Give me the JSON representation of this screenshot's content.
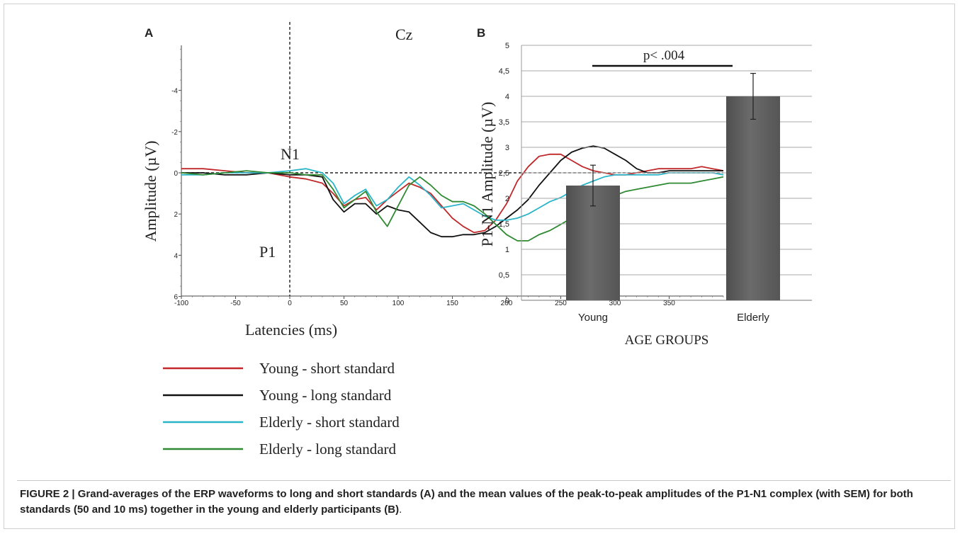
{
  "chart_data": [
    {
      "panel": "A",
      "type": "line",
      "channel": "Cz",
      "xlabel": "Latencies (ms)",
      "ylabel": "Amplitude (µV)",
      "xlim": [
        -100,
        400
      ],
      "ylim": [
        -6,
        6
      ],
      "y_inverted": true,
      "x_ticks": [
        "-100",
        "-50",
        "0",
        "50",
        "100",
        "150",
        "200",
        "250",
        "300",
        "350"
      ],
      "y_ticks": [
        "-4",
        "-2",
        "0",
        "2",
        "4",
        "6"
      ],
      "annotations": [
        "N1",
        "P1"
      ],
      "series": [
        {
          "name": "Young - short standard",
          "color": "#c0282a",
          "x": [
            -100,
            -80,
            -60,
            -40,
            -20,
            0,
            15,
            30,
            40,
            50,
            60,
            70,
            80,
            90,
            100,
            110,
            120,
            130,
            140,
            150,
            160,
            170,
            180,
            190,
            200,
            210,
            220,
            230,
            240,
            250,
            260,
            270,
            280,
            290,
            300,
            310,
            320,
            330,
            340,
            350,
            360,
            370,
            380,
            390,
            400
          ],
          "y": [
            -0.2,
            -0.2,
            -0.1,
            0,
            0,
            0.2,
            0.3,
            0.5,
            1.0,
            1.6,
            1.3,
            1.2,
            1.8,
            1.3,
            0.9,
            0.5,
            0.7,
            1.0,
            1.6,
            2.2,
            2.6,
            2.9,
            2.8,
            2.3,
            1.5,
            0.4,
            -0.3,
            -0.8,
            -0.9,
            -0.9,
            -0.6,
            -0.3,
            -0.1,
            0,
            0.1,
            0.1,
            0,
            -0.1,
            -0.2,
            -0.2,
            -0.2,
            -0.2,
            -0.3,
            -0.2,
            -0.1
          ]
        },
        {
          "name": "Young - long standard",
          "color": "#111111",
          "x": [
            -100,
            -80,
            -60,
            -40,
            -20,
            0,
            15,
            30,
            40,
            50,
            60,
            70,
            80,
            90,
            100,
            110,
            120,
            130,
            140,
            150,
            160,
            170,
            180,
            190,
            200,
            210,
            220,
            230,
            240,
            250,
            260,
            270,
            280,
            290,
            300,
            310,
            320,
            330,
            340,
            350,
            360,
            370,
            380,
            390,
            400
          ],
          "y": [
            0,
            0,
            0.1,
            0.1,
            0,
            0.1,
            0.1,
            0.2,
            1.3,
            1.9,
            1.5,
            1.5,
            2.0,
            1.6,
            1.8,
            1.9,
            2.4,
            2.9,
            3.1,
            3.1,
            3.0,
            3.0,
            2.9,
            2.6,
            2.2,
            1.8,
            1.3,
            0.6,
            0,
            -0.6,
            -1.0,
            -1.2,
            -1.3,
            -1.2,
            -0.9,
            -0.6,
            -0.2,
            0,
            0,
            -0.1,
            -0.1,
            -0.1,
            -0.1,
            -0.1,
            -0.1
          ]
        },
        {
          "name": "Elderly - short standard",
          "color": "#2ab5c8",
          "x": [
            -100,
            -80,
            -60,
            -40,
            -20,
            0,
            15,
            30,
            40,
            50,
            60,
            70,
            80,
            90,
            100,
            110,
            120,
            130,
            140,
            150,
            160,
            170,
            180,
            190,
            200,
            210,
            220,
            230,
            240,
            250,
            260,
            270,
            280,
            290,
            300,
            310,
            320,
            330,
            340,
            350,
            360,
            370,
            380,
            390,
            400
          ],
          "y": [
            0.1,
            0.1,
            0,
            0,
            0,
            -0.1,
            -0.2,
            0,
            0.5,
            1.5,
            1.1,
            0.8,
            1.6,
            1.3,
            0.7,
            0.2,
            0.6,
            1.1,
            1.7,
            1.6,
            1.5,
            1.8,
            2.1,
            2.3,
            2.3,
            2.2,
            2.0,
            1.7,
            1.4,
            1.2,
            0.9,
            0.6,
            0.4,
            0.2,
            0.1,
            0.1,
            0.1,
            0.1,
            0.1,
            0,
            0,
            0,
            0,
            0,
            0.1
          ]
        },
        {
          "name": "Elderly - long standard",
          "color": "#2f8a33",
          "x": [
            -100,
            -80,
            -60,
            -40,
            -20,
            0,
            15,
            30,
            40,
            50,
            60,
            70,
            80,
            90,
            100,
            110,
            120,
            130,
            140,
            150,
            160,
            170,
            180,
            190,
            200,
            210,
            220,
            230,
            240,
            250,
            260,
            270,
            280,
            290,
            300,
            310,
            320,
            330,
            340,
            350,
            360,
            370,
            380,
            390,
            400
          ],
          "y": [
            0,
            0.1,
            0,
            -0.1,
            0,
            0,
            0.1,
            0.1,
            0.8,
            1.7,
            1.3,
            0.9,
            1.9,
            2.6,
            1.6,
            0.6,
            0.2,
            0.6,
            1.1,
            1.4,
            1.4,
            1.6,
            2.0,
            2.5,
            3.0,
            3.3,
            3.3,
            3.0,
            2.8,
            2.5,
            2.2,
            1.9,
            1.6,
            1.3,
            1.1,
            0.9,
            0.8,
            0.7,
            0.6,
            0.5,
            0.5,
            0.5,
            0.4,
            0.3,
            0.2
          ]
        }
      ]
    },
    {
      "panel": "B",
      "type": "bar",
      "categories": [
        "Young",
        "Elderly"
      ],
      "values": [
        2.25,
        4.0
      ],
      "errors": [
        0.4,
        0.45
      ],
      "xlabel": "AGE GROUPS",
      "ylabel": "P1-N1 Amplitude (µV)",
      "ylim": [
        0,
        5
      ],
      "y_ticks": [
        "0",
        "0,5",
        "1",
        "1,5",
        "2",
        "2,5",
        "3",
        "3,5",
        "4",
        "4,5",
        "5"
      ],
      "grid": true,
      "bar_color": "#6b6b6b",
      "significance": "p< .004"
    }
  ],
  "caption": {
    "label": "FIGURE 2 | ",
    "text": "Grand-averages of the ERP waveforms to long and short standards (A) and the mean values of the peak-to-peak amplitudes of the P1-N1 complex (with SEM) for both standards (50 and 10 ms) together in the young and elderly participants (B)",
    "end": "."
  }
}
